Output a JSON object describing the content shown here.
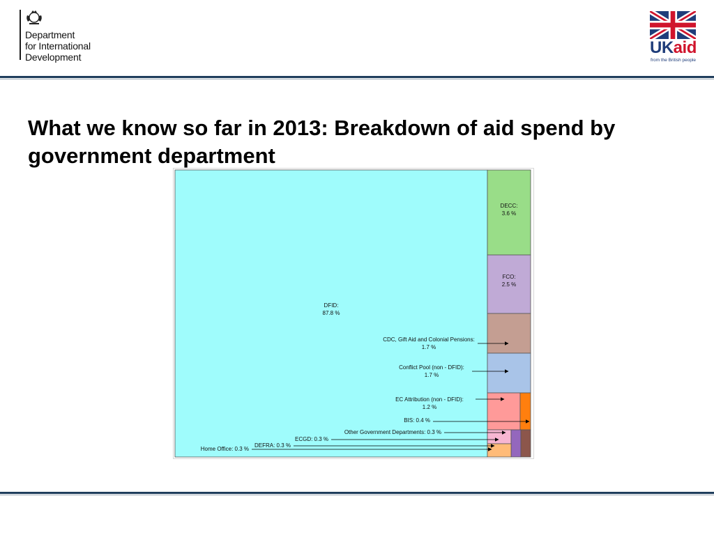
{
  "header": {
    "dfid_logo_lines": [
      "Department",
      "for International",
      "Development"
    ],
    "ukaid_uk": "UK",
    "ukaid_aid": "aid",
    "ukaid_tagline": "from the British people"
  },
  "slide": {
    "title": "What we know so far in 2013: Breakdown of aid spend by government department"
  },
  "colors": {
    "rule": "#1f3d5c",
    "dfid": "#9ffcfc",
    "decc": "#99dd88",
    "fco": "#c0aad6",
    "cdc": "#c49e92",
    "conflict_pool": "#a9c4e8",
    "ec_attribution": "#ff9a99",
    "bis": "#ff7f0e",
    "other_government_departments": "#f7b6d2",
    "ecgd": "#9467bd",
    "defra": "#8c564b",
    "home_office": "#ffbb78"
  },
  "chart_data": {
    "type": "treemap",
    "unit": "%",
    "items": [
      {
        "name": "DFID",
        "value": 87.8,
        "label": "DFID:",
        "value_label": "87.8 %",
        "label_inside": true
      },
      {
        "name": "DECC",
        "value": 3.6,
        "label": "DECC:",
        "value_label": "3.6 %",
        "label_inside": true
      },
      {
        "name": "FCO",
        "value": 2.5,
        "label": "FCO:",
        "value_label": "2.5 %",
        "label_inside": true
      },
      {
        "name": "CDC, Gift Aid and Colonial Pensions",
        "value": 1.7,
        "label": "CDC, Gift Aid and Colonial Pensions:",
        "value_label": "1.7 %",
        "label_inside": false
      },
      {
        "name": "Conflict Pool (non - DFID)",
        "value": 1.7,
        "label": "Conflict Pool (non - DFID):",
        "value_label": "1.7 %",
        "label_inside": false
      },
      {
        "name": "EC Attribution (non - DFID)",
        "value": 1.2,
        "label": "EC Attribution (non - DFID):",
        "value_label": "1.2 %",
        "label_inside": false
      },
      {
        "name": "BIS",
        "value": 0.4,
        "label": "BIS: 0.4 %",
        "label_inside": false
      },
      {
        "name": "Other Government Departments",
        "value": 0.3,
        "label": "Other Government Departments: 0.3 %",
        "label_inside": false
      },
      {
        "name": "ECGD",
        "value": 0.3,
        "label": "ECGD: 0.3 %",
        "label_inside": false
      },
      {
        "name": "DEFRA",
        "value": 0.3,
        "label": "DEFRA: 0.3 %",
        "label_inside": false
      },
      {
        "name": "Home Office",
        "value": 0.3,
        "label": "Home Office: 0.3 %",
        "label_inside": false
      }
    ]
  }
}
